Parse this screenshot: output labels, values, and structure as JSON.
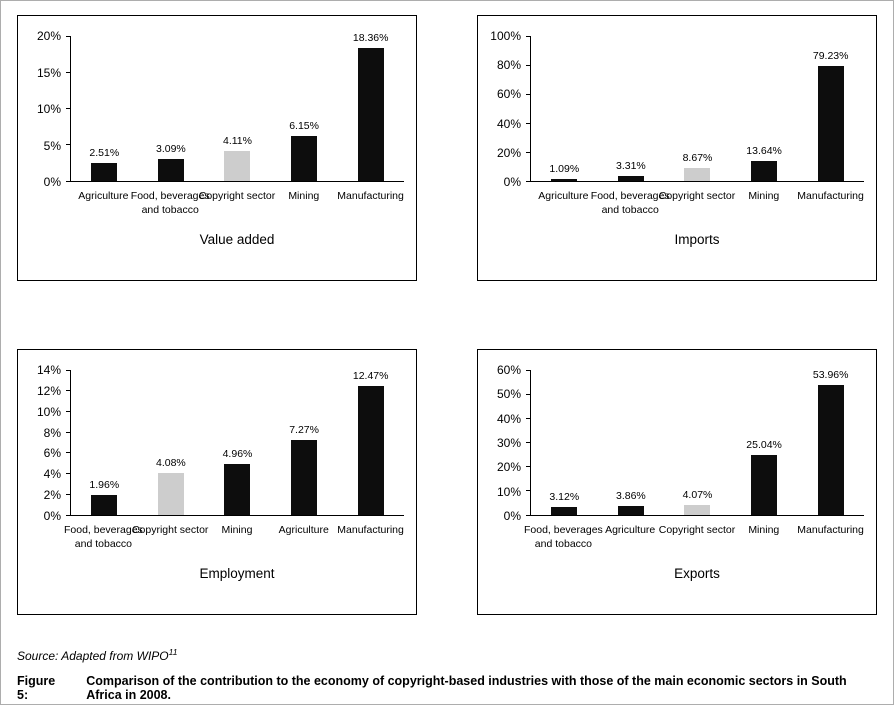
{
  "figure": {
    "source_text": "Source: Adapted from WIPO",
    "source_superscript": "11",
    "caption_label": "Figure 5:",
    "caption_text": "Comparison of the contribution to the economy of copyright-based industries with those of the main economic sectors in South Africa in 2008."
  },
  "colors": {
    "bar_default": "#0d0d0d",
    "bar_highlight": "#cdcdcd",
    "axis": "#000000",
    "panel_border": "#000000",
    "figure_border": "#adadad"
  },
  "chart_data": [
    {
      "type": "bar",
      "title": "Value added",
      "categories": [
        "Agriculture",
        "Food, beverages\nand tobacco",
        "Copyright sector",
        "Mining",
        "Manufacturing"
      ],
      "values": [
        2.51,
        3.09,
        4.11,
        6.15,
        18.36
      ],
      "value_labels": [
        "2.51%",
        "3.09%",
        "4.11%",
        "6.15%",
        "18.36%"
      ],
      "highlight_index": 2,
      "highlight_category": "Copyright sector",
      "ylim": [
        0,
        20
      ],
      "yticks": [
        0,
        5,
        10,
        15,
        20
      ],
      "ytick_labels": [
        "0%",
        "5%",
        "10%",
        "15%",
        "20%"
      ],
      "grid": false,
      "legend": false
    },
    {
      "type": "bar",
      "title": "Imports",
      "categories": [
        "Agriculture",
        "Food, beverages\nand tobacco",
        "Copyright sector",
        "Mining",
        "Manufacturing"
      ],
      "values": [
        1.09,
        3.31,
        8.67,
        13.64,
        79.23
      ],
      "value_labels": [
        "1.09%",
        "3.31%",
        "8.67%",
        "13.64%",
        "79.23%"
      ],
      "highlight_index": 2,
      "highlight_category": "Copyright sector",
      "ylim": [
        0,
        100
      ],
      "yticks": [
        0,
        20,
        40,
        60,
        80,
        100
      ],
      "ytick_labels": [
        "0%",
        "20%",
        "40%",
        "60%",
        "80%",
        "100%"
      ],
      "grid": false,
      "legend": false
    },
    {
      "type": "bar",
      "title": "Employment",
      "categories": [
        "Food, beverages\nand tobacco",
        "Copyright sector",
        "Mining",
        "Agriculture",
        "Manufacturing"
      ],
      "values": [
        1.96,
        4.08,
        4.96,
        7.27,
        12.47
      ],
      "value_labels": [
        "1.96%",
        "4.08%",
        "4.96%",
        "7.27%",
        "12.47%"
      ],
      "highlight_index": 1,
      "highlight_category": "Copyright sector",
      "ylim": [
        0,
        14
      ],
      "yticks": [
        0,
        2,
        4,
        6,
        8,
        10,
        12,
        14
      ],
      "ytick_labels": [
        "0%",
        "2%",
        "4%",
        "6%",
        "8%",
        "10%",
        "12%",
        "14%"
      ],
      "grid": false,
      "legend": false
    },
    {
      "type": "bar",
      "title": "Exports",
      "categories": [
        "Food, beverages\nand tobacco",
        "Agriculture",
        "Copyright sector",
        "Mining",
        "Manufacturing"
      ],
      "values": [
        3.12,
        3.86,
        4.07,
        25.04,
        53.96
      ],
      "value_labels": [
        "3.12%",
        "3.86%",
        "4.07%",
        "25.04%",
        "53.96%"
      ],
      "highlight_index": 2,
      "highlight_category": "Copyright sector",
      "ylim": [
        0,
        60
      ],
      "yticks": [
        0,
        10,
        20,
        30,
        40,
        50,
        60
      ],
      "ytick_labels": [
        "0%",
        "10%",
        "20%",
        "30%",
        "40%",
        "50%",
        "60%"
      ],
      "grid": false,
      "legend": false
    }
  ]
}
